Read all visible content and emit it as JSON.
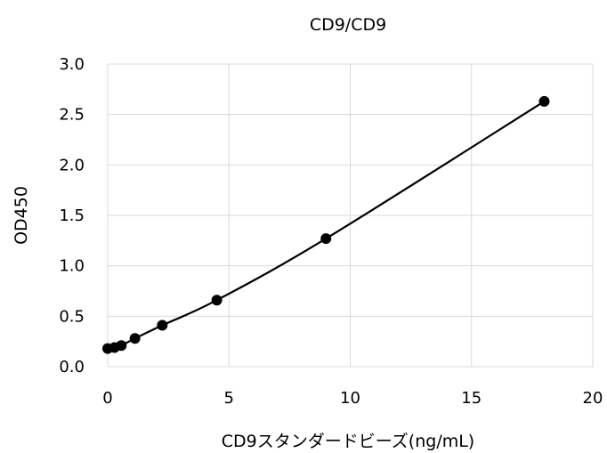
{
  "chart_data": {
    "type": "scatter",
    "title": "CD9/CD9",
    "xlabel": "CD9スタンダードビーズ(ng/mL)",
    "ylabel": "OD450",
    "xlim": [
      0,
      20
    ],
    "ylim": [
      0,
      3.0
    ],
    "x_ticks": [
      "0",
      "5",
      "10",
      "15",
      "20"
    ],
    "y_ticks": [
      "0.0",
      "0.5",
      "1.0",
      "1.5",
      "2.0",
      "2.5",
      "3.0"
    ],
    "grid": true,
    "legend": "none",
    "series": [
      {
        "color": "#000000",
        "marker": "circle",
        "line": "smooth",
        "x": [
          0,
          0.28,
          0.56,
          1.125,
          2.25,
          4.5,
          9,
          18
        ],
        "y": [
          0.18,
          0.19,
          0.21,
          0.28,
          0.41,
          0.66,
          1.27,
          2.63
        ]
      }
    ]
  }
}
